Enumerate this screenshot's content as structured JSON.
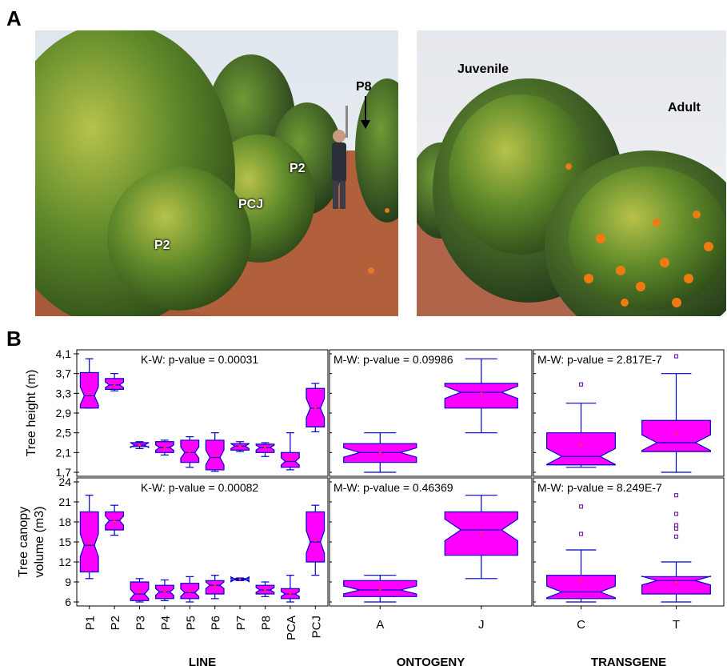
{
  "panel_labels": {
    "a": "A",
    "b": "B"
  },
  "photo_left": {
    "labels": {
      "p8": "P8",
      "p2_far": "P2",
      "pcj": "PCJ",
      "p2_near": "P2"
    }
  },
  "photo_right": {
    "labels": {
      "juvenile": "Juvenile",
      "adult": "Adult"
    }
  },
  "colors": {
    "box_fill": "#ff00ff",
    "box_stroke": "#0000cc",
    "mean_marker": "#ff3333",
    "outlier": "#7b1fa2",
    "frame": "#000000"
  },
  "chart_data": {
    "type": "boxplot",
    "rows": [
      {
        "ylabel": "Tree height (m)",
        "yticks": [
          "1,7",
          "2,1",
          "2,5",
          "2,9",
          "3,3",
          "3,7",
          "4,1"
        ],
        "ylim": [
          1.7,
          4.1
        ]
      },
      {
        "ylabel": "Tree canopy volume (m3)",
        "yticks": [
          "6",
          "9",
          "12",
          "15",
          "18",
          "21",
          "24"
        ],
        "ylim": [
          6,
          24
        ]
      }
    ],
    "columns": [
      {
        "xlabel": "LINE",
        "categories": [
          "P1",
          "P2",
          "P3",
          "P4",
          "P5",
          "P6",
          "P7",
          "P8",
          "PCA",
          "PCJ"
        ]
      },
      {
        "xlabel": "ONTOGENY",
        "categories": [
          "A",
          "J"
        ]
      },
      {
        "xlabel": "TRANSGENE",
        "categories": [
          "C",
          "T"
        ]
      }
    ],
    "annotations": [
      [
        "K-W: p-value = 0.00031",
        "M-W: p-value = 0.09986",
        "M-W: p-value = 2.817E-7"
      ],
      [
        "K-W: p-value = 0.00082",
        "M-W: p-value = 0.46369",
        "M-W: p-value = 8.249E-7"
      ]
    ],
    "boxes": [
      [
        [
          {
            "min": 3.0,
            "q1": 3.0,
            "med": 3.25,
            "q3": 3.72,
            "max": 4.0,
            "mean": 3.3
          },
          {
            "min": 3.35,
            "q1": 3.38,
            "med": 3.47,
            "q3": 3.6,
            "max": 3.7,
            "mean": 3.47
          },
          {
            "min": 2.18,
            "q1": 2.22,
            "med": 2.25,
            "q3": 2.3,
            "max": 2.32,
            "mean": 2.25
          },
          {
            "min": 2.05,
            "q1": 2.1,
            "med": 2.2,
            "q3": 2.32,
            "max": 2.35,
            "mean": 2.2
          },
          {
            "min": 1.8,
            "q1": 1.9,
            "med": 2.1,
            "q3": 2.35,
            "max": 2.42,
            "mean": 2.12
          },
          {
            "min": 1.72,
            "q1": 1.75,
            "med": 2.0,
            "q3": 2.35,
            "max": 2.5,
            "mean": 2.05
          },
          {
            "min": 2.12,
            "q1": 2.15,
            "med": 2.23,
            "q3": 2.28,
            "max": 2.32,
            "mean": 2.23
          },
          {
            "min": 2.02,
            "q1": 2.1,
            "med": 2.2,
            "q3": 2.27,
            "max": 2.3,
            "mean": 2.2
          },
          {
            "min": 1.75,
            "q1": 1.8,
            "med": 1.92,
            "q3": 2.1,
            "max": 2.5,
            "mean": 1.97
          },
          {
            "min": 2.52,
            "q1": 2.62,
            "med": 3.0,
            "q3": 3.4,
            "max": 3.5,
            "mean": 3.0
          }
        ],
        [
          {
            "min": 1.7,
            "q1": 1.9,
            "med": 2.1,
            "q3": 2.28,
            "max": 2.5,
            "mean": 2.1
          },
          {
            "min": 2.5,
            "q1": 3.0,
            "med": 3.32,
            "q3": 3.5,
            "max": 4.0,
            "mean": 3.3
          }
        ],
        [
          {
            "min": 1.8,
            "q1": 1.85,
            "med": 2.02,
            "q3": 2.5,
            "max": 3.1,
            "mean": 2.25,
            "outliers": [
              3.48
            ]
          },
          {
            "min": 1.7,
            "q1": 2.12,
            "med": 2.3,
            "q3": 2.75,
            "max": 3.7,
            "mean": 2.48,
            "outliers": [
              4.05
            ]
          }
        ]
      ],
      [
        [
          {
            "min": 9.5,
            "q1": 10.5,
            "med": 14.5,
            "q3": 19.5,
            "max": 22.0,
            "mean": 14.8
          },
          {
            "min": 16.0,
            "q1": 16.8,
            "med": 18.2,
            "q3": 19.5,
            "max": 20.5,
            "mean": 18.1
          },
          {
            "min": 6.0,
            "q1": 6.2,
            "med": 7.2,
            "q3": 9.0,
            "max": 9.5,
            "mean": 7.5
          },
          {
            "min": 6.2,
            "q1": 6.5,
            "med": 7.5,
            "q3": 8.5,
            "max": 9.3,
            "mean": 7.6
          },
          {
            "min": 6.0,
            "q1": 6.5,
            "med": 7.4,
            "q3": 8.8,
            "max": 9.8,
            "mean": 7.6
          },
          {
            "min": 6.5,
            "q1": 7.2,
            "med": 8.5,
            "q3": 9.2,
            "max": 10.0,
            "mean": 8.4
          },
          {
            "min": 9.2,
            "q1": 9.3,
            "med": 9.4,
            "q3": 9.5,
            "max": 9.6,
            "mean": 9.4
          },
          {
            "min": 6.8,
            "q1": 7.2,
            "med": 7.8,
            "q3": 8.5,
            "max": 9.0,
            "mean": 7.8
          },
          {
            "min": 6.0,
            "q1": 6.5,
            "med": 7.2,
            "q3": 8.0,
            "max": 10.0,
            "mean": 7.3
          },
          {
            "min": 10.0,
            "q1": 12.0,
            "med": 15.0,
            "q3": 19.5,
            "max": 20.5,
            "mean": 15.2
          }
        ],
        [
          {
            "min": 6.0,
            "q1": 6.8,
            "med": 7.8,
            "q3": 9.2,
            "max": 10.0,
            "mean": 7.9
          },
          {
            "min": 9.5,
            "q1": 13.0,
            "med": 16.8,
            "q3": 19.5,
            "max": 22.0,
            "mean": 16.3
          }
        ],
        [
          {
            "min": 6.0,
            "q1": 6.5,
            "med": 7.5,
            "q3": 10.0,
            "max": 13.8,
            "mean": 9.2,
            "outliers": [
              16.2,
              20.3
            ]
          },
          {
            "min": 6.0,
            "q1": 7.2,
            "med": 9.2,
            "q3": 9.8,
            "max": 12.0,
            "mean": 9.0,
            "outliers": [
              15.8,
              17.0,
              17.5,
              19.2,
              22.0
            ]
          }
        ]
      ]
    ]
  }
}
